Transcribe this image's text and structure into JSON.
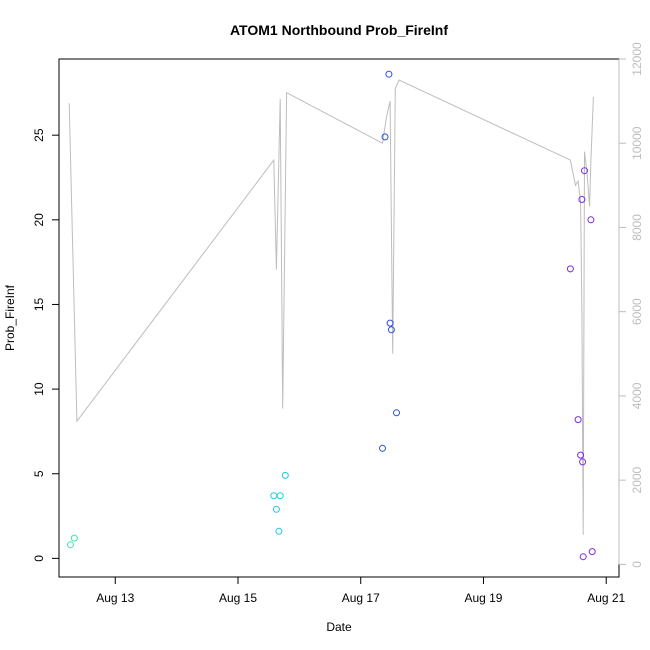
{
  "chart_data": {
    "type": "scatter",
    "title": "ATOM1 Northbound Prob_FireInf",
    "xlabel": "Date",
    "ylabel": "Prob_FireInf",
    "x_ticks": [
      {
        "date": "2023-08-13",
        "label": "Aug 13"
      },
      {
        "date": "2023-08-15",
        "label": "Aug 15"
      },
      {
        "date": "2023-08-17",
        "label": "Aug 17"
      },
      {
        "date": "2023-08-19",
        "label": "Aug 19"
      },
      {
        "date": "2023-08-21",
        "label": "Aug 21"
      }
    ],
    "xlim": [
      "2023-08-12T02:00",
      "2023-08-21T05:00"
    ],
    "ylim": [
      -1.1,
      29.5
    ],
    "y_ticks": [
      0,
      5,
      10,
      15,
      20,
      25
    ],
    "y2lim": [
      -300,
      12000
    ],
    "y2_ticks": [
      0,
      2000,
      4000,
      6000,
      8000,
      10000,
      12000
    ],
    "grid": false,
    "colors": {
      "secondary_line": "#bdbdbd",
      "secondary_axis": "#bdbdbd"
    },
    "points": [
      {
        "x": "2023-08-12T06:30",
        "y": 0.8,
        "color": "#3ee6b0"
      },
      {
        "x": "2023-08-12T08:00",
        "y": 1.2,
        "color": "#3ee6b0"
      },
      {
        "x": "2023-08-15T14:00",
        "y": 3.7,
        "color": "#1ec8e6"
      },
      {
        "x": "2023-08-15T15:00",
        "y": 2.9,
        "color": "#1ec8e6"
      },
      {
        "x": "2023-08-15T16:00",
        "y": 1.6,
        "color": "#1ec8e6"
      },
      {
        "x": "2023-08-15T16:30",
        "y": 3.7,
        "color": "#1ec8e6"
      },
      {
        "x": "2023-08-15T18:30",
        "y": 4.9,
        "color": "#1ec8e6"
      },
      {
        "x": "2023-08-17T08:30",
        "y": 6.5,
        "color": "#2a4ee6"
      },
      {
        "x": "2023-08-17T09:30",
        "y": 24.9,
        "color": "#2a4ee6"
      },
      {
        "x": "2023-08-17T11:00",
        "y": 28.6,
        "color": "#2a4ee6"
      },
      {
        "x": "2023-08-17T11:30",
        "y": 13.9,
        "color": "#2a4ee6"
      },
      {
        "x": "2023-08-17T12:00",
        "y": 13.5,
        "color": "#2a4ee6"
      },
      {
        "x": "2023-08-17T14:00",
        "y": 8.6,
        "color": "#2a4ee6"
      },
      {
        "x": "2023-08-20T10:00",
        "y": 17.1,
        "color": "#7a2ee6"
      },
      {
        "x": "2023-08-20T13:00",
        "y": 8.2,
        "color": "#7a2ee6"
      },
      {
        "x": "2023-08-20T14:00",
        "y": 6.1,
        "color": "#7a2ee6"
      },
      {
        "x": "2023-08-20T14:30",
        "y": 21.2,
        "color": "#7a2ee6"
      },
      {
        "x": "2023-08-20T14:45",
        "y": 5.7,
        "color": "#7a2ee6"
      },
      {
        "x": "2023-08-20T15:00",
        "y": 0.1,
        "color": "#7a2ee6"
      },
      {
        "x": "2023-08-20T15:30",
        "y": 22.9,
        "color": "#7a2ee6"
      },
      {
        "x": "2023-08-20T18:00",
        "y": 20.0,
        "color": "#7a2ee6"
      },
      {
        "x": "2023-08-20T18:30",
        "y": 0.4,
        "color": "#7a2ee6"
      }
    ],
    "secondary_line": [
      {
        "x": "2023-08-12T06:00",
        "y2": 10950
      },
      {
        "x": "2023-08-12T09:00",
        "y2": 3400
      },
      {
        "x": "2023-08-15T14:00",
        "y2": 9600
      },
      {
        "x": "2023-08-15T15:00",
        "y2": 7000
      },
      {
        "x": "2023-08-15T16:30",
        "y2": 11050
      },
      {
        "x": "2023-08-15T17:30",
        "y2": 3700
      },
      {
        "x": "2023-08-15T19:00",
        "y2": 11200
      },
      {
        "x": "2023-08-17T08:30",
        "y2": 10000
      },
      {
        "x": "2023-08-17T10:00",
        "y2": 10600
      },
      {
        "x": "2023-08-17T11:30",
        "y2": 11000
      },
      {
        "x": "2023-08-17T12:30",
        "y2": 5000
      },
      {
        "x": "2023-08-17T13:30",
        "y2": 11300
      },
      {
        "x": "2023-08-17T15:00",
        "y2": 11500
      },
      {
        "x": "2023-08-20T10:00",
        "y2": 9600
      },
      {
        "x": "2023-08-20T12:00",
        "y2": 9000
      },
      {
        "x": "2023-08-20T13:00",
        "y2": 9100
      },
      {
        "x": "2023-08-20T14:00",
        "y2": 8600
      },
      {
        "x": "2023-08-20T14:30",
        "y2": 6000
      },
      {
        "x": "2023-08-20T15:00",
        "y2": 700
      },
      {
        "x": "2023-08-20T15:30",
        "y2": 9800
      },
      {
        "x": "2023-08-20T16:30",
        "y2": 9300
      },
      {
        "x": "2023-08-20T17:30",
        "y2": 8500
      },
      {
        "x": "2023-08-20T18:00",
        "y2": 9600
      },
      {
        "x": "2023-08-20T19:00",
        "y2": 11100
      }
    ]
  }
}
